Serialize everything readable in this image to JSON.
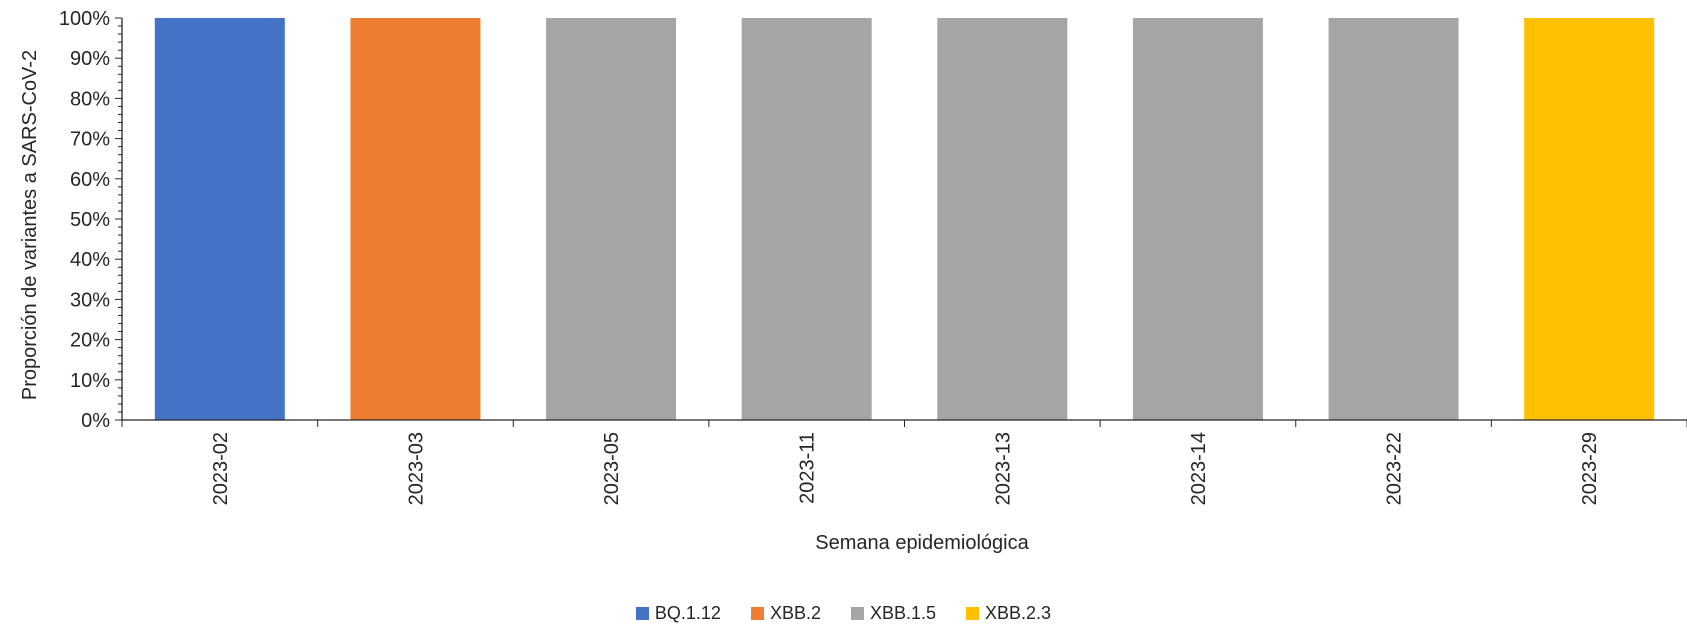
{
  "chart_data": {
    "type": "bar",
    "stacked": true,
    "categories": [
      "2023-02",
      "2023-03",
      "2023-05",
      "2023-11",
      "2023-13",
      "2023-14",
      "2023-22",
      "2023-29"
    ],
    "series": [
      {
        "name": "BQ.1.12",
        "color": "#4472C4",
        "values": [
          100,
          0,
          0,
          0,
          0,
          0,
          0,
          0
        ]
      },
      {
        "name": "XBB.2",
        "color": "#ED7D31",
        "values": [
          0,
          100,
          0,
          0,
          0,
          0,
          0,
          0
        ]
      },
      {
        "name": "XBB.1.5",
        "color": "#A5A5A5",
        "values": [
          0,
          0,
          100,
          100,
          100,
          100,
          100,
          0
        ]
      },
      {
        "name": "XBB.2.3",
        "color": "#FFC000",
        "values": [
          0,
          0,
          0,
          0,
          0,
          0,
          0,
          100
        ]
      }
    ],
    "yticks": [
      "0%",
      "10%",
      "20%",
      "30%",
      "40%",
      "50%",
      "60%",
      "70%",
      "80%",
      "90%",
      "100%"
    ],
    "ylim": [
      0,
      100
    ],
    "xlabel": "Semana epidemiológica",
    "ylabel": "Proporción de variantes a SARS-CoV-2",
    "grid": false,
    "legend_position": "bottom"
  }
}
